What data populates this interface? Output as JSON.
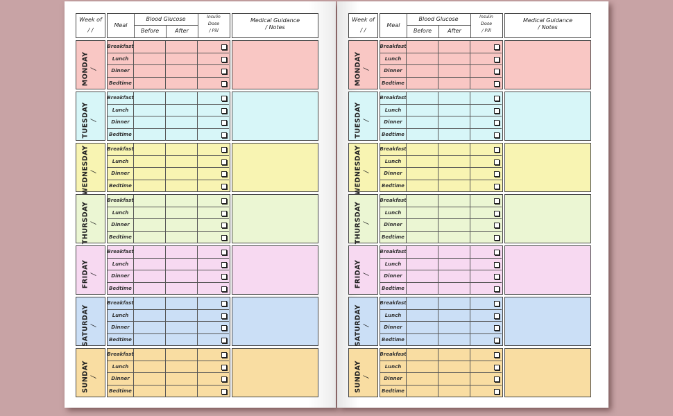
{
  "header": {
    "week_of": "Week of",
    "week_date": "/   /",
    "meal": "Meal",
    "blood_glucose": "Blood Glucose",
    "before": "Before",
    "after": "After",
    "insulin": "Insulin",
    "dose": "Dose",
    "pill": "/ Pill",
    "guidance": "Medical Guidance",
    "notes": "/ Notes"
  },
  "meals": [
    "Breakfast",
    "Lunch",
    "Dinner",
    "Bedtime"
  ],
  "day_date_slash": "/",
  "days": [
    {
      "name": "MONDAY",
      "color": "#f9c7c4"
    },
    {
      "name": "TUESDAY",
      "color": "#d7f6f8"
    },
    {
      "name": "WEDNESDAY",
      "color": "#f8f4b2"
    },
    {
      "name": "THURSDAY",
      "color": "#ebf6d3"
    },
    {
      "name": "FRIDAY",
      "color": "#f7d9f1"
    },
    {
      "name": "SATURDAY",
      "color": "#cbdff6"
    },
    {
      "name": "SUNDAY",
      "color": "#f9dda2"
    }
  ],
  "checkbox_icon": "empty-checkbox",
  "background_color": "#c8a3a5"
}
